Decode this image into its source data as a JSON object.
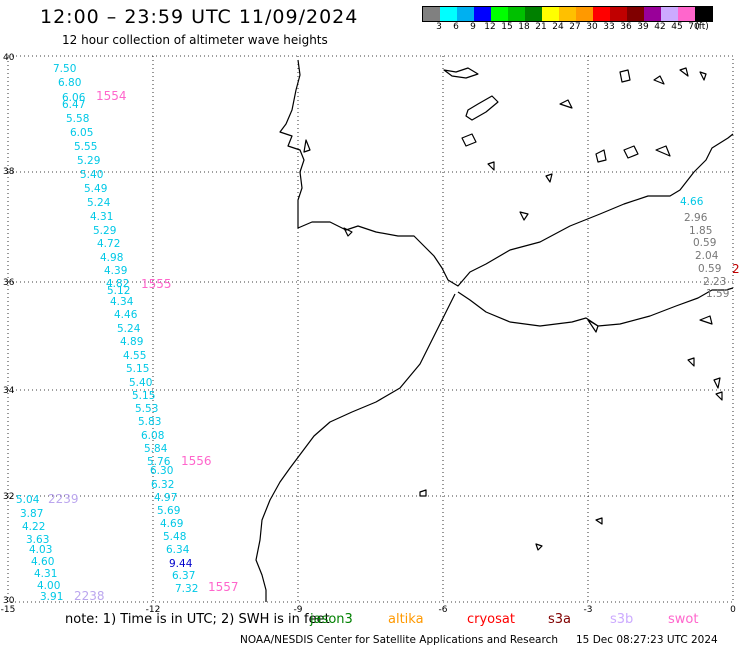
{
  "title": "12:00 – 23:59 UTC 11/09/2024",
  "subtitle": "12 hour collection of altimeter wave heights",
  "legend": {
    "colors": [
      "#808080",
      "#00ffff",
      "#00b0f0",
      "#0000ff",
      "#00ff00",
      "#00c000",
      "#008000",
      "#ffff00",
      "#ffc000",
      "#ff9900",
      "#ff0000",
      "#c00000",
      "#800000",
      "#990099",
      "#ccaaff",
      "#ff66cc",
      "#000000"
    ],
    "labels": [
      "3",
      "6",
      "9",
      "12",
      "15",
      "18",
      "21",
      "24",
      "27",
      "30",
      "33",
      "36",
      "39",
      "42",
      "45",
      "70",
      "(ft)"
    ]
  },
  "axes": {
    "lon_ticks": [
      "-15",
      "-12",
      "-9",
      "-6",
      "-3",
      "0"
    ],
    "lat_ticks": [
      "40",
      "38",
      "36",
      "34",
      "32",
      "30"
    ]
  },
  "tracks": [
    {
      "color": "#00c8e6",
      "labels": [
        "7.50",
        "6.80",
        "6.06",
        "6.47",
        "5.58",
        "6.05",
        "5.55",
        "5.29",
        "5.40",
        "5.49",
        "5.24",
        "4.31",
        "5.29",
        "4.72",
        "4.98",
        "4.39",
        "4.82",
        "5.12",
        "4.34",
        "4.46",
        "5.24",
        "4.89",
        "4.55",
        "5.15",
        "5.40",
        "5.15",
        "5.53",
        "5.83",
        "6.08",
        "5.84",
        "5.76",
        "6.30",
        "6.32",
        "4.97",
        "5.69",
        "4.69",
        "5.48",
        "6.34",
        "9.44",
        "6.37",
        "7.32"
      ]
    },
    {
      "color": "#00c8e6",
      "labels": [
        "5.04",
        "3.87",
        "4.22",
        "3.63",
        "4.03",
        "4.60",
        "4.31",
        "4.00",
        "3.91"
      ]
    },
    {
      "color": "#00c8e6",
      "labels": [
        "4.66"
      ]
    },
    {
      "color": "#777777",
      "labels": [
        "2.96",
        "1.85",
        "0.59",
        "2.04",
        "0.59",
        "2.23",
        "1.59"
      ]
    }
  ],
  "pass_ids": [
    {
      "label": "1554",
      "color": "#ff66cc"
    },
    {
      "label": "1555",
      "color": "#ff66cc"
    },
    {
      "label": "1556",
      "color": "#ff66cc"
    },
    {
      "label": "1557",
      "color": "#ff66cc"
    },
    {
      "label": "2239",
      "color": "#bba6ee"
    },
    {
      "label": "2238",
      "color": "#bba6ee"
    },
    {
      "label": "2",
      "color": "#c00000"
    }
  ],
  "footer": {
    "note": "note:  1) Time is in UTC; 2) SWH is in feet",
    "satellites": [
      {
        "name": "jason3",
        "color": "#008000"
      },
      {
        "name": "altika",
        "color": "#ff9900"
      },
      {
        "name": "cryosat",
        "color": "#ff0000"
      },
      {
        "name": "s3a",
        "color": "#800000"
      },
      {
        "name": "s3b",
        "color": "#ccaaff"
      },
      {
        "name": "swot",
        "color": "#ff66cc"
      }
    ],
    "credit": "NOAA/NESDIS Center for Satellite Applications and Research",
    "generated": "15 Dec 08:27:23 UTC 2024"
  }
}
